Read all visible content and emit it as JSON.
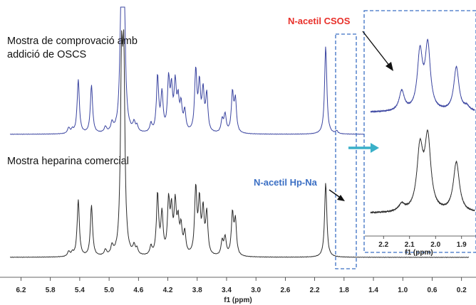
{
  "chart_data": {
    "type": "line",
    "xlabel": "f1 (ppm)",
    "x_ticks": [
      "6.2",
      "5.8",
      "5.4",
      "5.0",
      "4.6",
      "4.2",
      "3.8",
      "3.4",
      "3.0",
      "2.6",
      "2.2",
      "1.8",
      "1.4",
      "1.0",
      "0.6",
      "0.2"
    ],
    "xlim": [
      6.35,
      0.1
    ],
    "series": [
      {
        "name": "Mostra de comprovació amb addició de OSCS",
        "color": "#3a44a0",
        "peaks": [
          [
            5.55,
            8
          ],
          [
            5.5,
            5
          ],
          [
            5.42,
            76
          ],
          [
            5.24,
            68
          ],
          [
            5.05,
            8
          ],
          [
            4.96,
            12
          ],
          [
            4.83,
            250
          ],
          [
            4.8,
            250
          ],
          [
            4.66,
            12
          ],
          [
            4.62,
            8
          ],
          [
            4.43,
            12
          ],
          [
            4.34,
            78
          ],
          [
            4.28,
            52
          ],
          [
            4.19,
            70
          ],
          [
            4.15,
            55
          ],
          [
            4.1,
            64
          ],
          [
            4.06,
            40
          ],
          [
            4.02,
            35
          ],
          [
            3.97,
            28
          ],
          [
            3.82,
            85
          ],
          [
            3.77,
            64
          ],
          [
            3.72,
            55
          ],
          [
            3.67,
            52
          ],
          [
            3.46,
            18
          ],
          [
            3.42,
            25
          ],
          [
            3.32,
            55
          ],
          [
            3.28,
            45
          ],
          [
            2.05,
            124
          ],
          [
            1.9,
            4
          ]
        ]
      },
      {
        "name": "Mostra heparina comercial",
        "color": "#2b2b2b",
        "peaks": [
          [
            5.55,
            7
          ],
          [
            5.5,
            5
          ],
          [
            5.42,
            80
          ],
          [
            5.24,
            72
          ],
          [
            5.05,
            8
          ],
          [
            4.96,
            12
          ],
          [
            4.83,
            250
          ],
          [
            4.8,
            250
          ],
          [
            4.66,
            12
          ],
          [
            4.62,
            8
          ],
          [
            4.43,
            12
          ],
          [
            4.34,
            85
          ],
          [
            4.28,
            56
          ],
          [
            4.19,
            72
          ],
          [
            4.15,
            58
          ],
          [
            4.1,
            68
          ],
          [
            4.06,
            42
          ],
          [
            4.02,
            36
          ],
          [
            3.97,
            30
          ],
          [
            3.82,
            92
          ],
          [
            3.77,
            72
          ],
          [
            3.72,
            60
          ],
          [
            3.67,
            58
          ],
          [
            3.46,
            20
          ],
          [
            3.42,
            25
          ],
          [
            3.32,
            58
          ],
          [
            3.28,
            48
          ],
          [
            2.05,
            105
          ]
        ]
      }
    ],
    "inset": {
      "xlabel": "f1 (ppm)",
      "x_ticks": [
        "2.2",
        "2.1",
        "2.0",
        "1.9"
      ],
      "xlim": [
        2.25,
        1.85
      ],
      "top_series_peaks": [
        [
          2.13,
          28
        ],
        [
          2.06,
          80
        ],
        [
          2.03,
          90
        ],
        [
          1.92,
          62
        ],
        [
          1.88,
          6
        ]
      ],
      "bottom_series_peaks": [
        [
          2.13,
          10
        ],
        [
          2.06,
          85
        ],
        [
          2.03,
          100
        ],
        [
          1.92,
          70
        ]
      ]
    },
    "annotations": [
      {
        "text": "N-acetil CSOS",
        "color": "#e8302a"
      },
      {
        "text": "N-acetil Hp-Na",
        "color": "#3b6fc4"
      }
    ],
    "colors": {
      "box": "#3b6fc4",
      "arrow": "#3ab0c8"
    }
  }
}
